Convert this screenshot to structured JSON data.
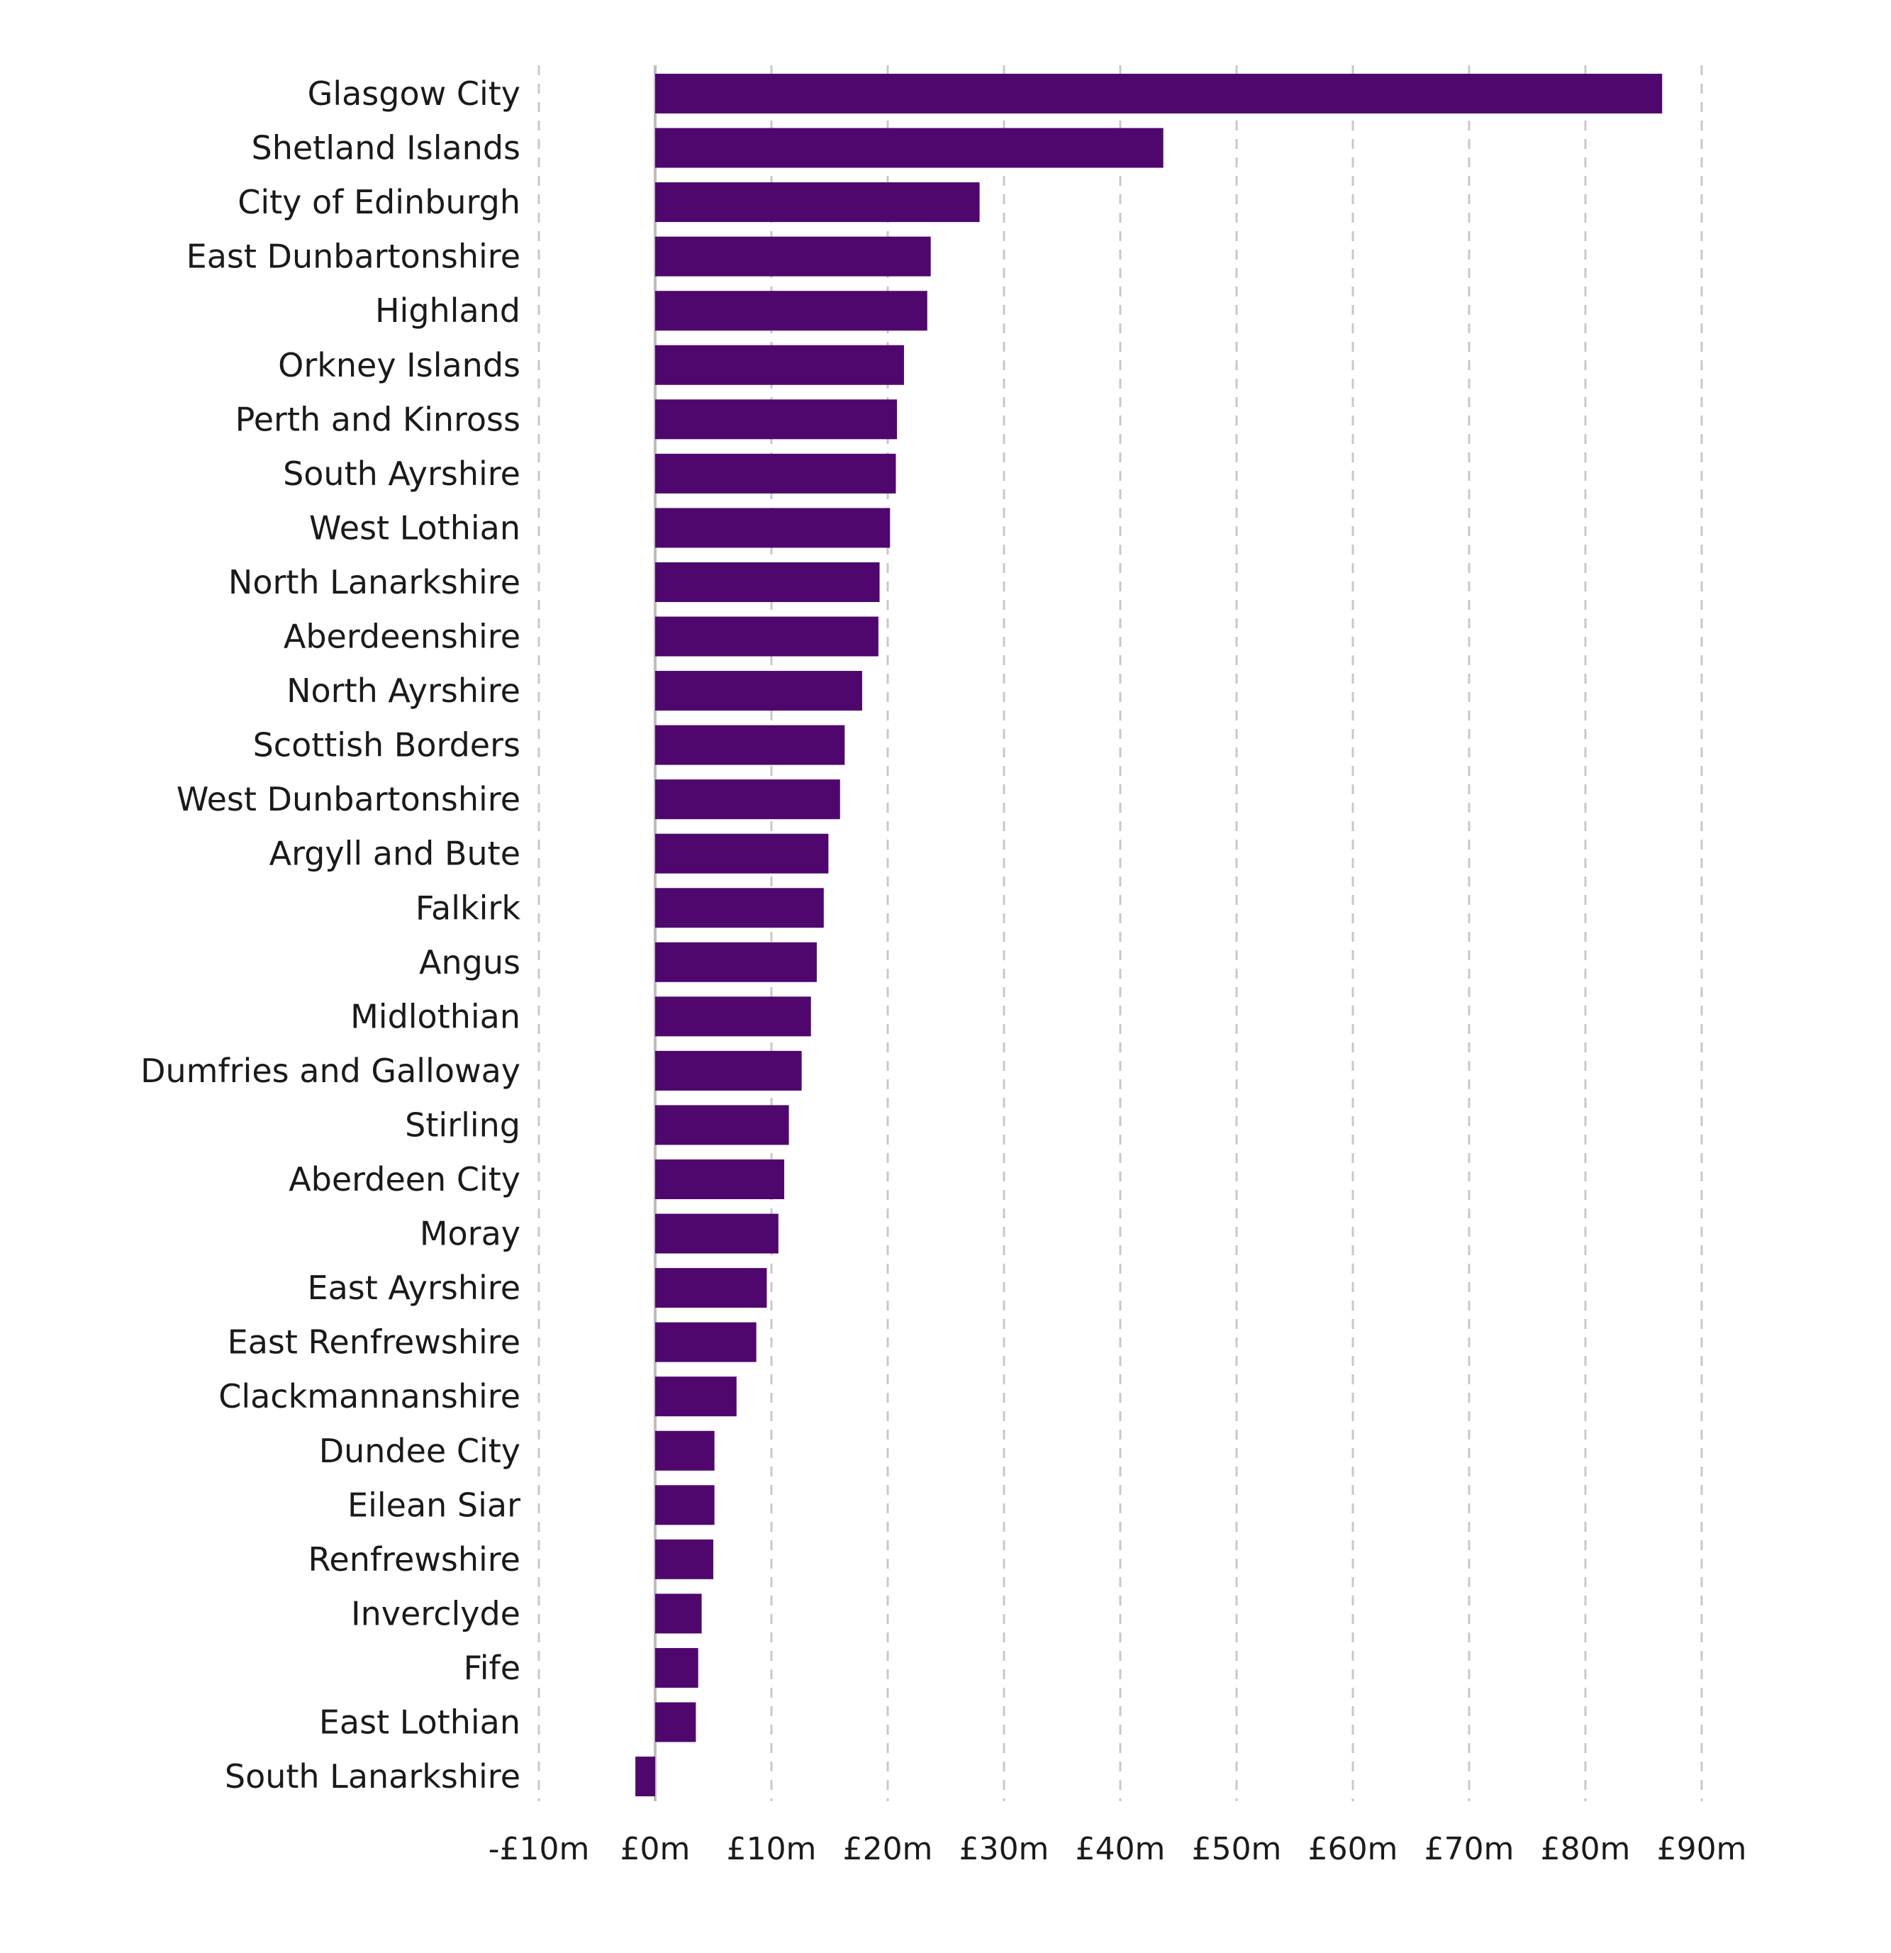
{
  "chart_data": {
    "type": "bar",
    "orientation": "horizontal",
    "title": "",
    "xlabel": "",
    "ylabel": "",
    "xlim": [
      -10,
      90
    ],
    "grid": true,
    "grid_style": "dashed vertical",
    "bar_color": "#4f076e",
    "tick_values": [
      -10,
      0,
      10,
      20,
      30,
      40,
      50,
      60,
      70,
      80,
      90
    ],
    "tick_labels": [
      "-£10m",
      "£0m",
      "£10m",
      "£20m",
      "£30m",
      "£40m",
      "£50m",
      "£60m",
      "£70m",
      "£80m",
      "£90m"
    ],
    "categories": [
      "Glasgow City",
      "Shetland Islands",
      "City of Edinburgh",
      "East Dunbartonshire",
      "Highland",
      "Orkney Islands",
      "Perth and Kinross",
      "South Ayrshire",
      "West Lothian",
      "North Lanarkshire",
      "Aberdeenshire",
      "North Ayrshire",
      "Scottish Borders",
      "West Dunbartonshire",
      "Argyll and Bute",
      "Falkirk",
      "Angus",
      "Midlothian",
      "Dumfries and Galloway",
      "Stirling",
      "Aberdeen City",
      "Moray",
      "East Ayrshire",
      "East Renfrewshire",
      "Clackmannanshire",
      "Dundee City",
      "Eilean Siar",
      "Renfrewshire",
      "Inverclyde",
      "Fife",
      "East Lothian",
      "South Lanarkshire"
    ],
    "values": [
      86.6,
      43.7,
      27.9,
      23.7,
      23.4,
      21.4,
      20.8,
      20.7,
      20.2,
      19.3,
      19.2,
      17.8,
      16.3,
      15.9,
      14.9,
      14.5,
      13.9,
      13.4,
      12.6,
      11.5,
      11.1,
      10.6,
      9.6,
      8.7,
      7.0,
      5.1,
      5.1,
      5.0,
      4.0,
      3.7,
      3.5,
      -1.7
    ]
  }
}
